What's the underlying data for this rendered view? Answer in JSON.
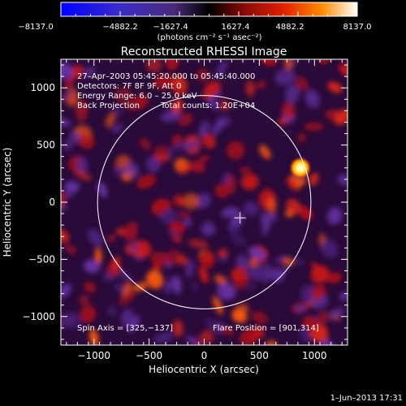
{
  "colorbar": {
    "tick_labels": [
      "−8137.0",
      "−4882.2",
      "−1627.4",
      "1627.4",
      "4882.2",
      "8137.0"
    ],
    "unit_label": "(photons cm⁻² s⁻¹ asec⁻²)",
    "min": -8137.0,
    "max": 8137.0
  },
  "title": "Reconstructed RHESSI Image",
  "info": {
    "line1": "27–Apr–2003 05:45:20.000 to 05:45:40.000",
    "line2": "Detectors: 7F 8F 9F, Att 0",
    "line3": "Energy Range: 6.0 – 25.0 keV",
    "line4a": "Back Projection",
    "line4b": "Total counts: 1.20E+04"
  },
  "footer_left": "Spin Axis = [325,−137]",
  "footer_right": "Flare Position = [901,314]",
  "xlabel": "Heliocentric X (arcsec)",
  "ylabel": "Heliocentric Y (arcsec)",
  "timestamp": "1–Jun–2013 17:31",
  "chart_data": {
    "type": "heatmap",
    "xlim": [
      -1300,
      1300
    ],
    "ylim": [
      -1250,
      1250
    ],
    "x_ticks": [
      -1000,
      -500,
      0,
      500,
      1000
    ],
    "x_tick_labels": [
      "−1000",
      "−500",
      "0",
      "500",
      "1000"
    ],
    "y_ticks": [
      -1000,
      -500,
      0,
      500,
      1000
    ],
    "y_tick_labels": [
      "−1000",
      "−500",
      "0",
      "500",
      "1000"
    ],
    "limb_radius": 950,
    "spin_axis": [
      325,
      -137
    ],
    "flare_position": [
      901,
      314
    ]
  }
}
